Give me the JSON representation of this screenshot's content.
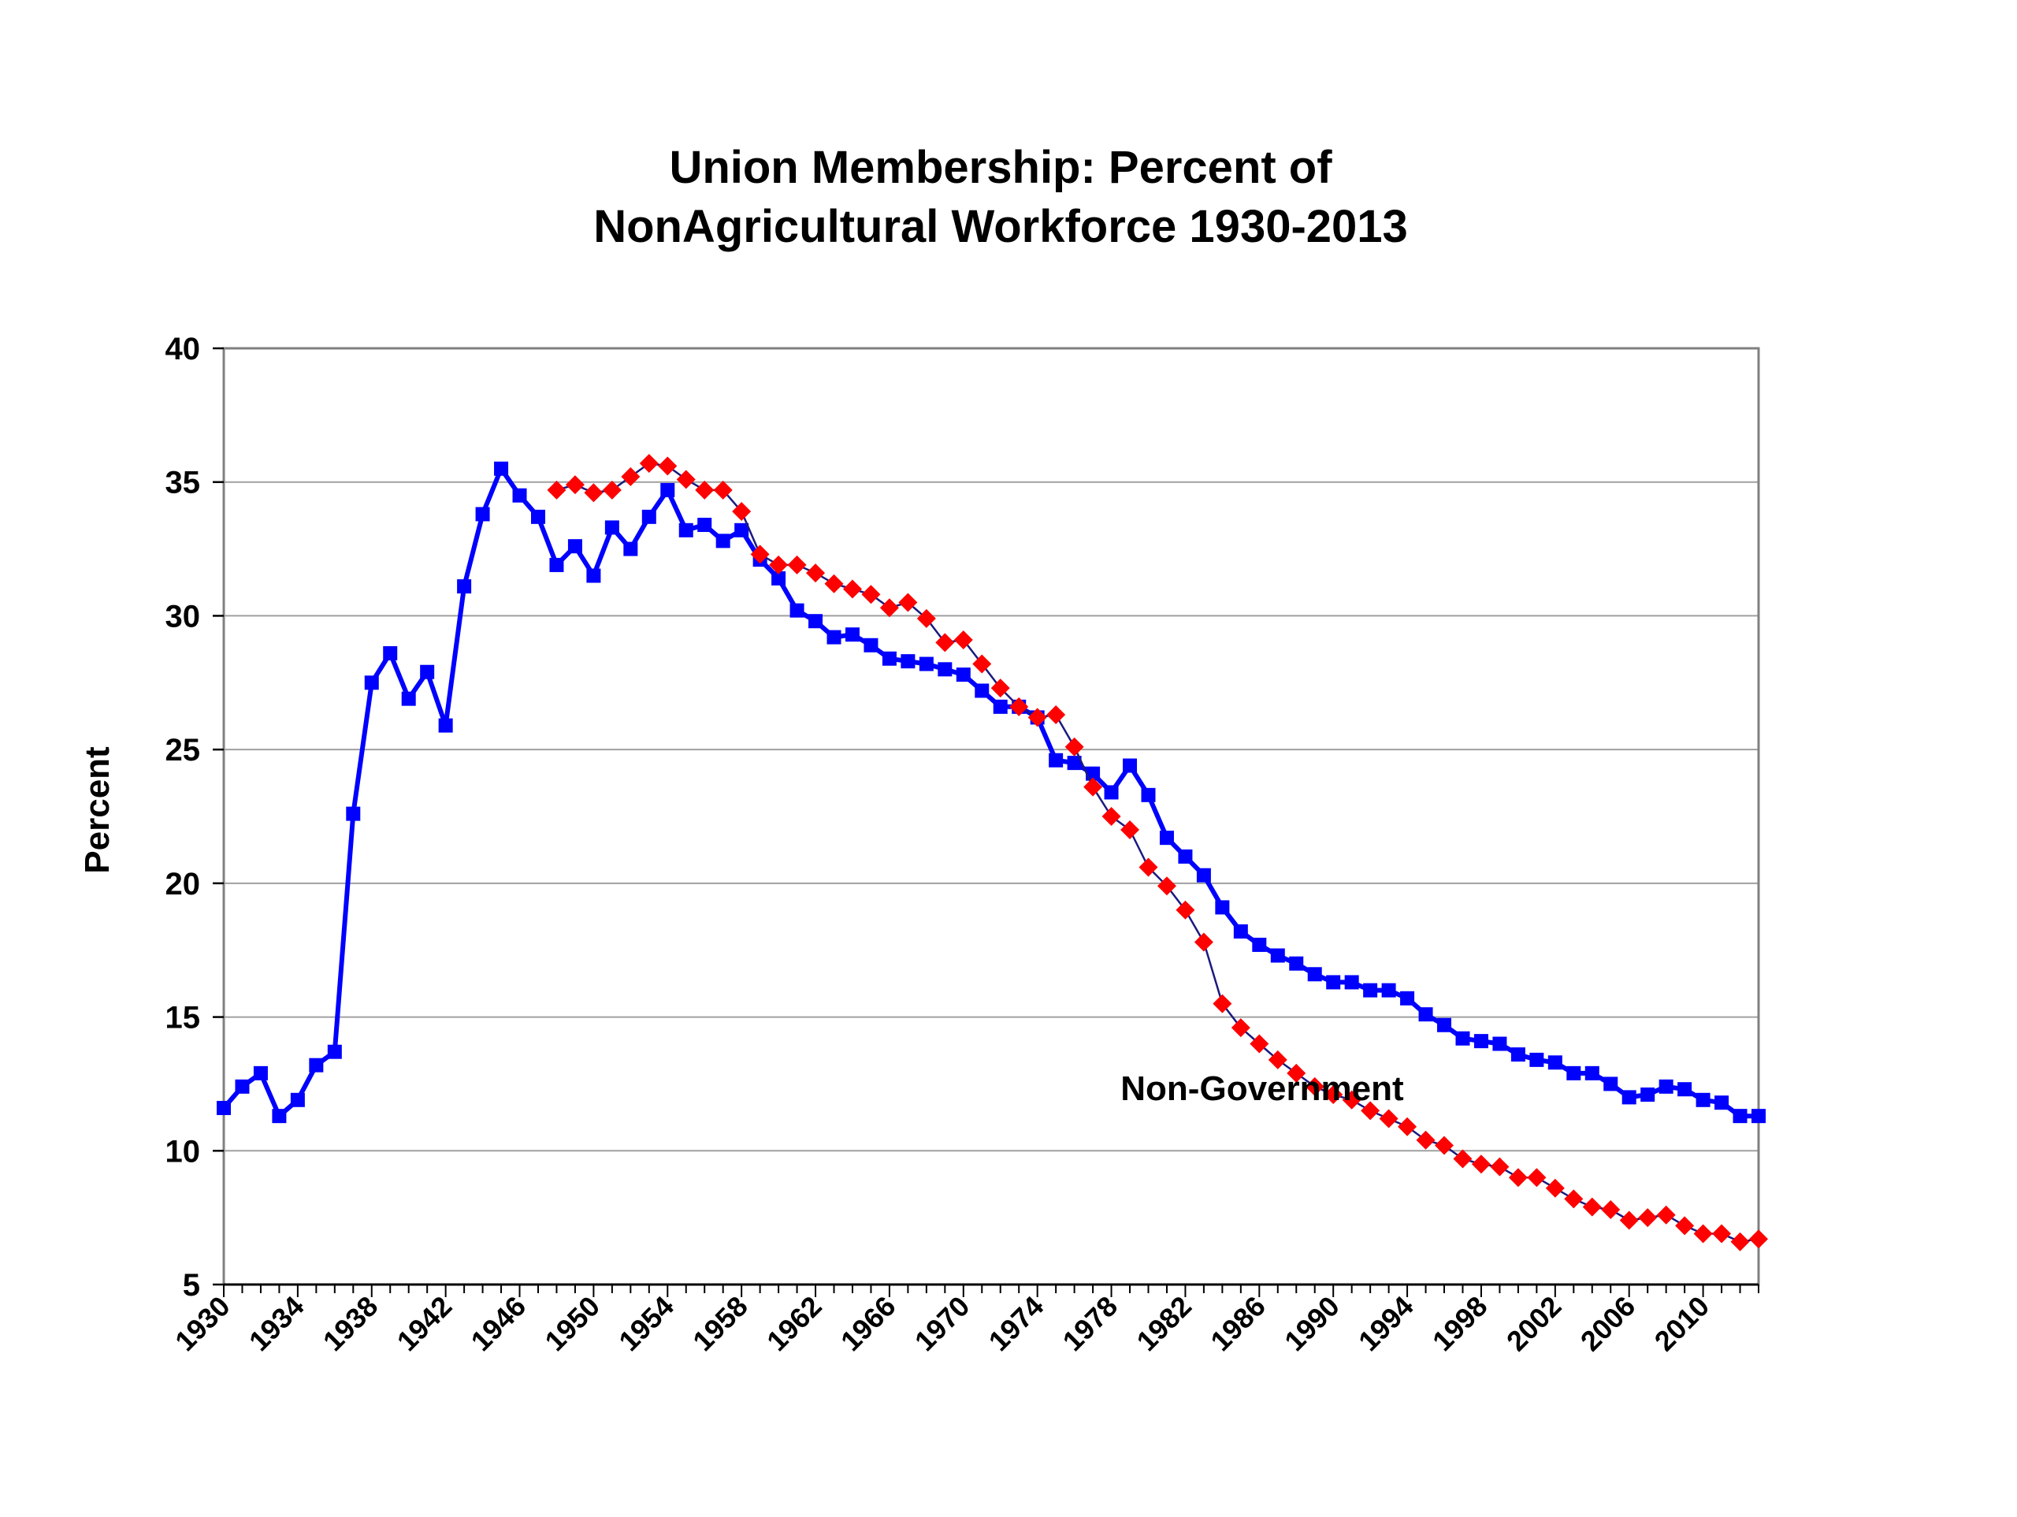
{
  "chart_data": {
    "type": "line",
    "title": [
      "Union Membership:  Percent of",
      "NonAgricultural Workforce 1930-2013"
    ],
    "ylabel": "Percent",
    "xlabel": "",
    "x_start": 1930,
    "x_end": 2013,
    "ylim": [
      5,
      40
    ],
    "y_ticks": [
      5,
      10,
      15,
      20,
      25,
      30,
      35,
      40
    ],
    "x_tick_labels": [
      "1930",
      "1934",
      "1938",
      "1942",
      "1946",
      "1950",
      "1954",
      "1958",
      "1962",
      "1966",
      "1970",
      "1974",
      "1978",
      "1982",
      "1986",
      "1990",
      "1994",
      "1998",
      "2002",
      "2006",
      "2010"
    ],
    "x_tick_years": [
      1930,
      1934,
      1938,
      1942,
      1946,
      1950,
      1954,
      1958,
      1962,
      1966,
      1970,
      1974,
      1978,
      1982,
      1986,
      1990,
      1994,
      1998,
      2002,
      2006,
      2010
    ],
    "grid": true,
    "annotations": [
      {
        "text": "Non-Government",
        "x": 1978.5,
        "y": 11.9
      }
    ],
    "colors": {
      "total": "#0000ff",
      "nongov": "#ff0000",
      "nongov_line": "#1a1a80",
      "grid": "#a0a0a0",
      "frame": "#808080"
    },
    "series": [
      {
        "id": "total",
        "marker": "square",
        "x": [
          1930,
          1931,
          1932,
          1933,
          1934,
          1935,
          1936,
          1937,
          1938,
          1939,
          1940,
          1941,
          1942,
          1943,
          1944,
          1945,
          1946,
          1947,
          1948,
          1949,
          1950,
          1951,
          1952,
          1953,
          1954,
          1955,
          1956,
          1957,
          1958,
          1959,
          1960,
          1961,
          1962,
          1963,
          1964,
          1965,
          1966,
          1967,
          1968,
          1969,
          1970,
          1971,
          1972,
          1973,
          1974,
          1975,
          1976,
          1977,
          1978,
          1979,
          1980,
          1981,
          1982,
          1983,
          1984,
          1985,
          1986,
          1987,
          1988,
          1989,
          1990,
          1991,
          1992,
          1993,
          1994,
          1995,
          1996,
          1997,
          1998,
          1999,
          2000,
          2001,
          2002,
          2003,
          2004,
          2005,
          2006,
          2007,
          2008,
          2009,
          2010,
          2011,
          2012,
          2013
        ],
        "values": [
          11.6,
          12.4,
          12.9,
          11.3,
          11.9,
          13.2,
          13.7,
          22.6,
          27.5,
          28.6,
          26.9,
          27.9,
          25.9,
          31.1,
          33.8,
          35.5,
          34.5,
          33.7,
          31.9,
          32.6,
          31.5,
          33.3,
          32.5,
          33.7,
          34.7,
          33.2,
          33.4,
          32.8,
          33.2,
          32.1,
          31.4,
          30.2,
          29.8,
          29.2,
          29.3,
          28.9,
          28.4,
          28.3,
          28.2,
          28.0,
          27.8,
          27.2,
          26.6,
          26.6,
          26.2,
          24.6,
          24.5,
          24.1,
          23.4,
          24.4,
          23.3,
          21.7,
          21.0,
          20.3,
          19.1,
          18.2,
          17.7,
          17.3,
          17.0,
          16.6,
          16.3,
          16.3,
          16.0,
          16.0,
          15.7,
          15.1,
          14.7,
          14.2,
          14.1,
          14.0,
          13.6,
          13.4,
          13.3,
          12.9,
          12.9,
          12.5,
          12.0,
          12.1,
          12.4,
          12.3,
          11.9,
          11.8,
          11.3,
          11.3
        ]
      },
      {
        "id": "nongov",
        "marker": "diamond",
        "x": [
          1948,
          1949,
          1950,
          1951,
          1952,
          1953,
          1954,
          1955,
          1956,
          1957,
          1958,
          1959,
          1960,
          1961,
          1962,
          1963,
          1964,
          1965,
          1966,
          1967,
          1968,
          1969,
          1970,
          1971,
          1972,
          1973,
          1974,
          1975,
          1976,
          1977,
          1978,
          1979,
          1980,
          1981,
          1982,
          1983,
          1984,
          1985,
          1986,
          1987,
          1988,
          1989,
          1990,
          1991,
          1992,
          1993,
          1994,
          1995,
          1996,
          1997,
          1998,
          1999,
          2000,
          2001,
          2002,
          2003,
          2004,
          2005,
          2006,
          2007,
          2008,
          2009,
          2010,
          2011,
          2012,
          2013
        ],
        "values": [
          34.7,
          34.9,
          34.6,
          34.7,
          35.2,
          35.7,
          35.6,
          35.1,
          34.7,
          34.7,
          33.9,
          32.3,
          31.9,
          31.9,
          31.6,
          31.2,
          31.0,
          30.8,
          30.3,
          30.5,
          29.9,
          29.0,
          29.1,
          28.2,
          27.3,
          26.6,
          26.2,
          26.3,
          25.1,
          23.6,
          22.5,
          22.0,
          20.6,
          19.9,
          19.0,
          17.8,
          15.5,
          14.6,
          14.0,
          13.4,
          12.9,
          12.4,
          12.1,
          11.9,
          11.5,
          11.2,
          10.9,
          10.4,
          10.2,
          9.7,
          9.5,
          9.4,
          9.0,
          9.0,
          8.6,
          8.2,
          7.9,
          7.8,
          7.4,
          7.5,
          7.6,
          7.2,
          6.9,
          6.9,
          6.6,
          6.7
        ]
      }
    ]
  }
}
